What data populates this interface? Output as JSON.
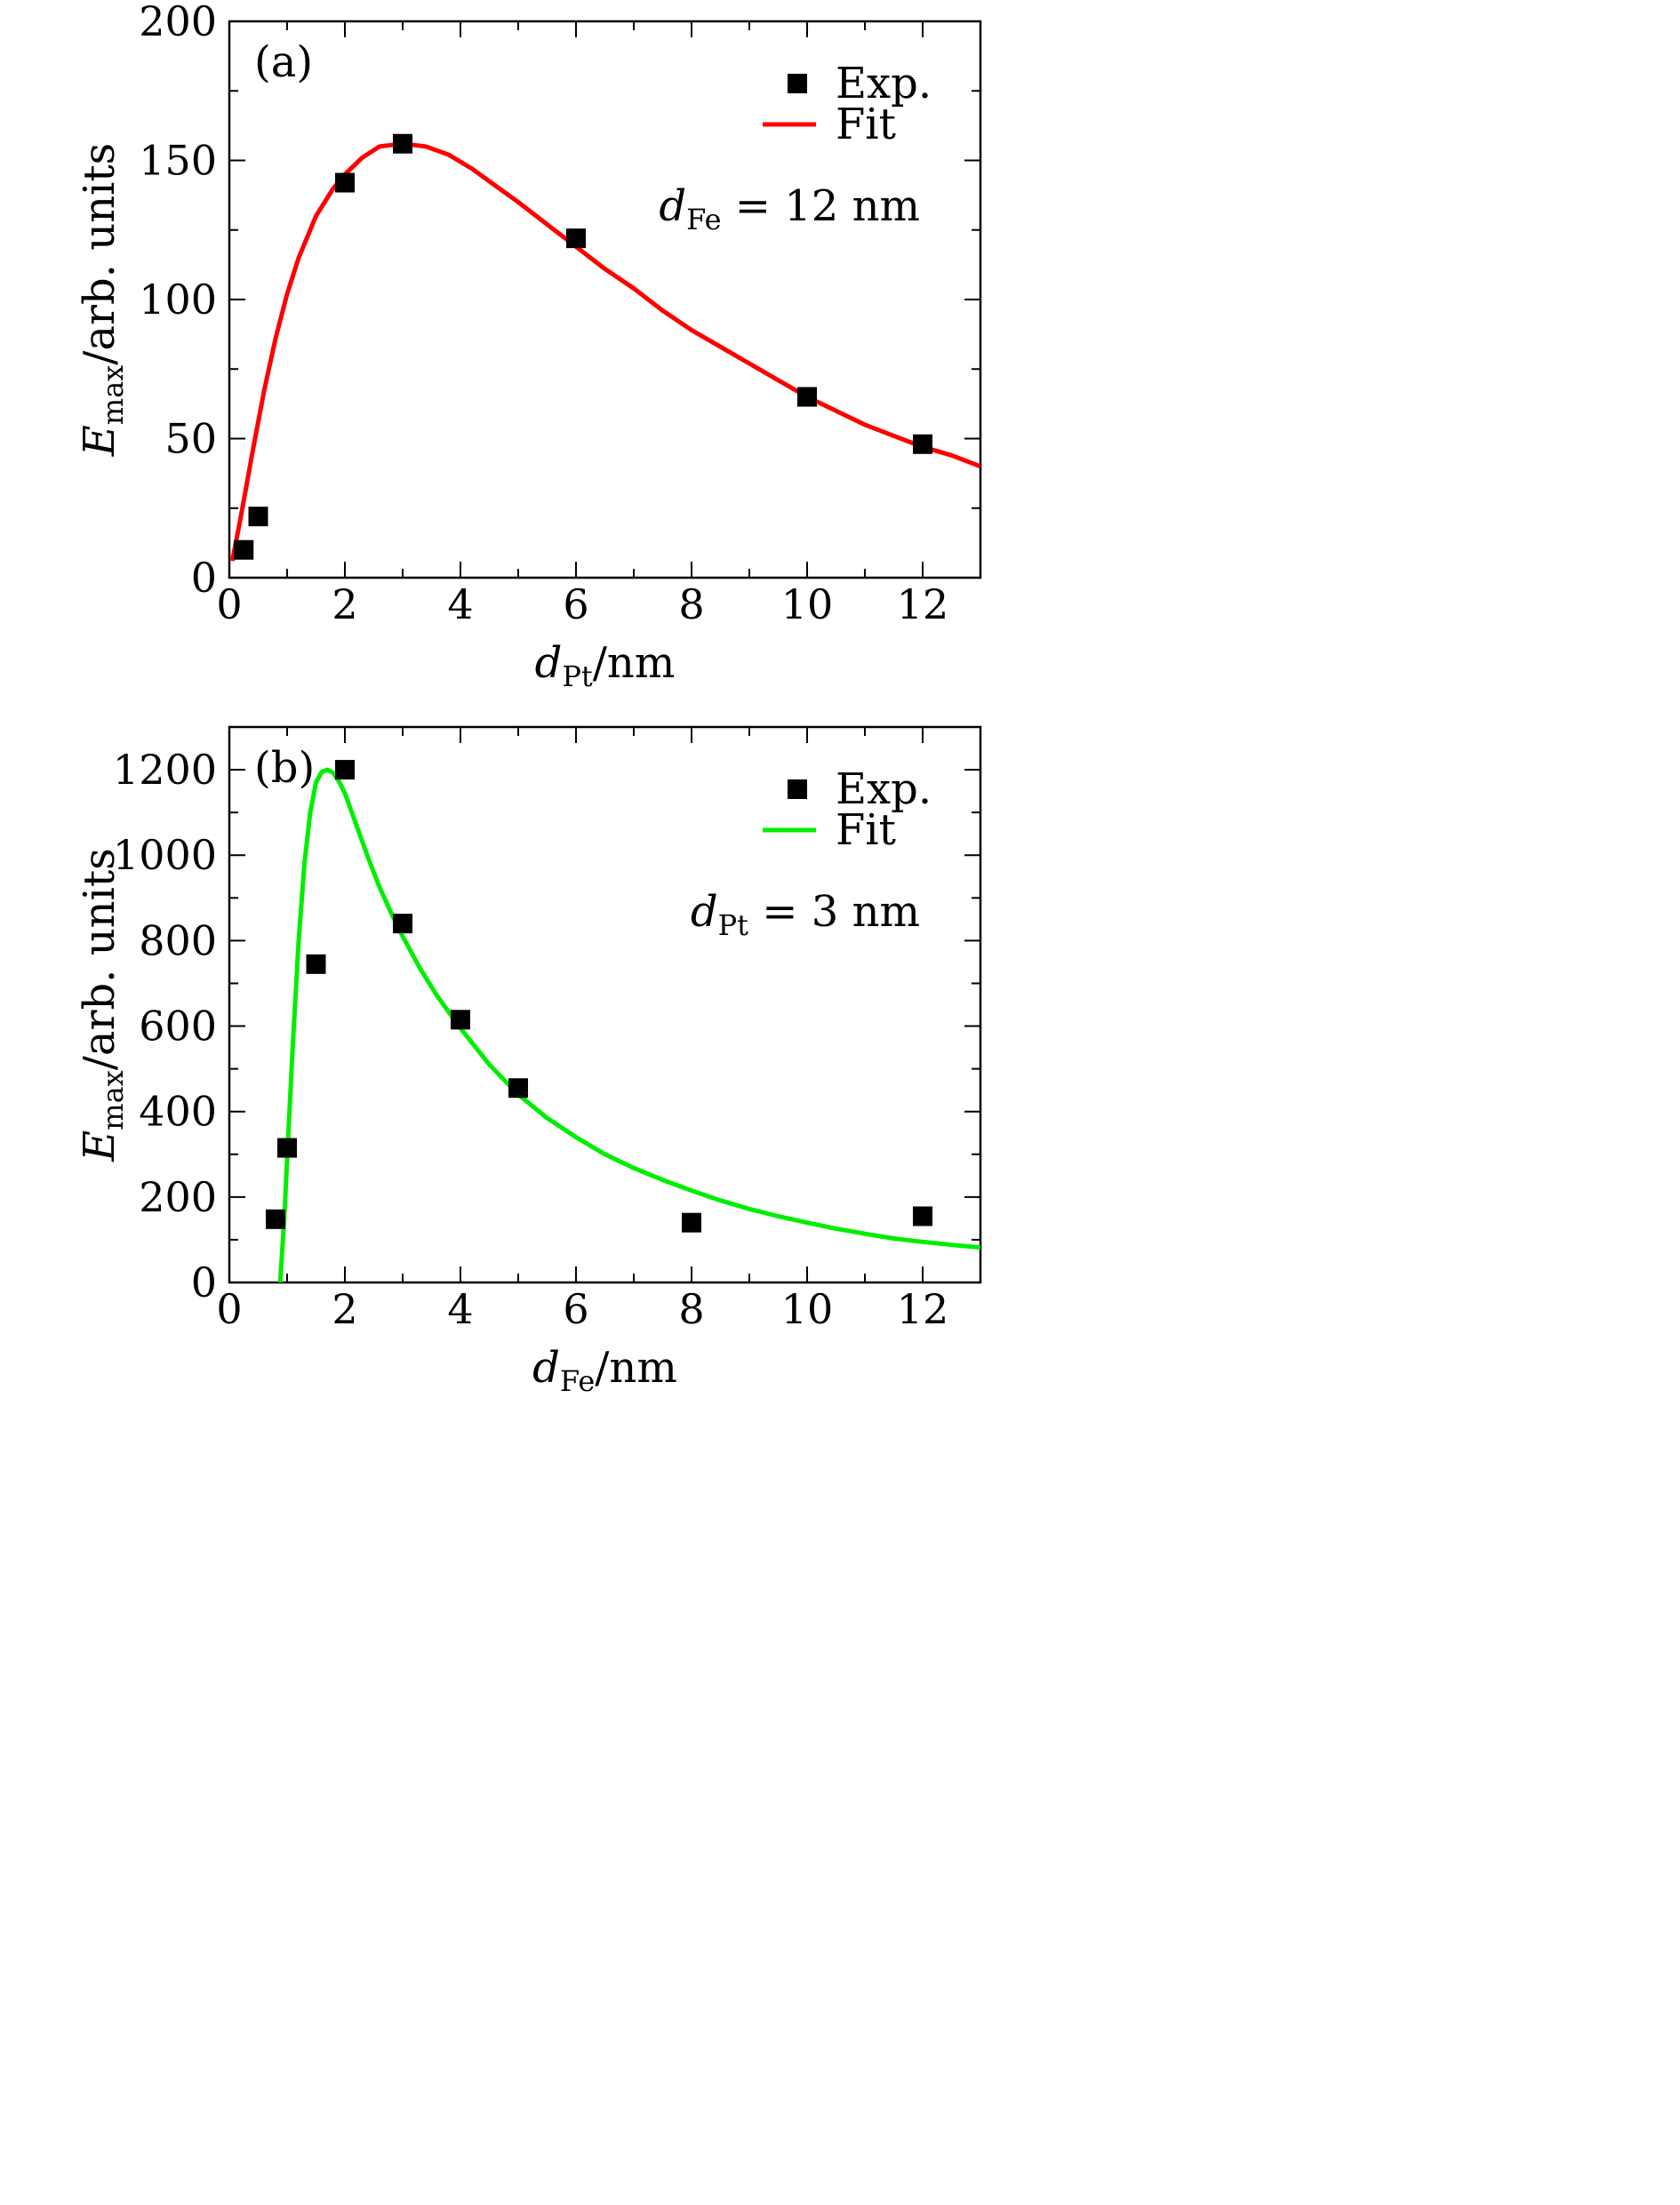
{
  "chart_data": [
    {
      "type": "scatter",
      "panel_label": "(a)",
      "xlabel": {
        "main": "d",
        "sub": "Pt",
        "rest": "/nm"
      },
      "ylabel": {
        "main": "E",
        "sub": "max",
        "rest": "/arb. units"
      },
      "xlim": [
        0,
        13
      ],
      "ylim": [
        0,
        200
      ],
      "xticks": [
        "0",
        "2",
        "4",
        "6",
        "8",
        "10",
        "12"
      ],
      "yticks": [
        "0",
        "50",
        "100",
        "150",
        "200"
      ],
      "annotation": {
        "main": "d",
        "sub": "Fe",
        "rest": " = 12 nm"
      },
      "legend": {
        "position": "top-right",
        "exp_label": "Exp.",
        "fit_label": "Fit"
      },
      "fit_color": "#ff0000",
      "series": [
        {
          "name": "Exp.",
          "kind": "points",
          "x": [
            0.25,
            0.5,
            2,
            3,
            6,
            10,
            12
          ],
          "y": [
            10,
            22,
            142,
            156,
            122,
            65,
            48
          ]
        },
        {
          "name": "Fit",
          "kind": "line",
          "x": [
            0.05,
            0.2,
            0.4,
            0.6,
            0.8,
            1.0,
            1.2,
            1.5,
            1.8,
            2.0,
            2.3,
            2.6,
            3.0,
            3.4,
            3.8,
            4.2,
            4.6,
            5.0,
            5.5,
            6.0,
            6.5,
            7.0,
            7.5,
            8.0,
            8.5,
            9.0,
            9.5,
            10.0,
            10.5,
            11.0,
            11.5,
            12.0,
            12.5,
            13.0
          ],
          "y": [
            6,
            22,
            45,
            67,
            86,
            102,
            115,
            130,
            140,
            145,
            151,
            155,
            156,
            155,
            152,
            147,
            141,
            135,
            127,
            119,
            111,
            104,
            96,
            89,
            83,
            77,
            71,
            65,
            60,
            55,
            51,
            47,
            44,
            40
          ]
        }
      ]
    },
    {
      "type": "scatter",
      "panel_label": "(b)",
      "xlabel": {
        "main": "d",
        "sub": "Fe",
        "rest": "/nm"
      },
      "ylabel": {
        "main": "E",
        "sub": "max",
        "rest": "/arb. units"
      },
      "xlim": [
        0,
        13
      ],
      "ylim": [
        0,
        1300
      ],
      "xticks": [
        "0",
        "2",
        "4",
        "6",
        "8",
        "10",
        "12"
      ],
      "yticks": [
        "0",
        "200",
        "400",
        "600",
        "800",
        "1000",
        "1200"
      ],
      "annotation": {
        "main": "d",
        "sub": "Pt",
        "rest": " = 3 nm"
      },
      "legend": {
        "position": "top-right",
        "exp_label": "Exp.",
        "fit_label": "Fit"
      },
      "fit_color": "#00ee00",
      "series": [
        {
          "name": "Exp.",
          "kind": "points",
          "x": [
            0.8,
            1.0,
            1.5,
            2,
            3,
            4,
            5,
            8,
            12
          ],
          "y": [
            148,
            315,
            745,
            1200,
            840,
            615,
            455,
            140,
            155
          ]
        },
        {
          "name": "Fit",
          "kind": "line",
          "x": [
            0.88,
            0.95,
            1.0,
            1.1,
            1.2,
            1.3,
            1.4,
            1.5,
            1.6,
            1.7,
            1.8,
            1.9,
            2.0,
            2.2,
            2.4,
            2.6,
            2.8,
            3.0,
            3.3,
            3.6,
            4.0,
            4.5,
            5.0,
            5.5,
            6.0,
            6.5,
            7.0,
            7.5,
            8.0,
            8.5,
            9.0,
            9.5,
            10.0,
            10.5,
            11.0,
            11.5,
            12.0,
            12.5,
            13.0
          ],
          "y": [
            0,
            150,
            290,
            560,
            800,
            980,
            1100,
            1170,
            1195,
            1200,
            1192,
            1172,
            1145,
            1070,
            995,
            925,
            865,
            810,
            735,
            670,
            595,
            510,
            440,
            385,
            340,
            300,
            268,
            240,
            215,
            192,
            172,
            155,
            140,
            126,
            114,
            103,
            95,
            88,
            82
          ]
        }
      ]
    }
  ]
}
